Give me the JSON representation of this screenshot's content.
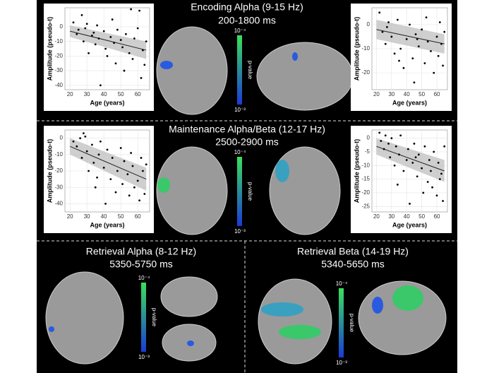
{
  "panels": [
    {
      "title": "Encoding Alpha (9-15 Hz)",
      "subtitle": "200-1800 ms"
    },
    {
      "title": "Maintenance Alpha/Beta (12-17 Hz)",
      "subtitle": "2500-2900 ms"
    },
    {
      "title": "Retrieval Alpha (8-12 Hz)",
      "subtitle": "5350-5750 ms"
    },
    {
      "title": "Retrieval Beta (14-19 Hz)",
      "subtitle": "5340-5650 ms"
    }
  ],
  "colorbar": {
    "label": "p-value",
    "top": "10⁻⁴",
    "bottom": "10⁻³"
  },
  "chart_data": [
    {
      "type": "scatter",
      "x_label": "Age (years)",
      "y_label": "Amplitude (pseudo-t)",
      "color": "#000000",
      "x": [
        22,
        24,
        25,
        27,
        28,
        29,
        30,
        31,
        33,
        34,
        35,
        36,
        37,
        38,
        40,
        41,
        42,
        44,
        45,
        46,
        47,
        48,
        50,
        51,
        52,
        53,
        55,
        56,
        57,
        58,
        60,
        61,
        62,
        63,
        64,
        65
      ],
      "values": [
        3,
        -5,
        -2,
        8,
        -10,
        -1,
        2,
        -18,
        -6,
        -4,
        -12,
        1,
        -8,
        -40,
        -3,
        -15,
        -20,
        -7,
        5,
        -11,
        -25,
        -2,
        -9,
        -14,
        -30,
        -5,
        -18,
        12,
        -22,
        -8,
        -1,
        11,
        -35,
        -16,
        -26,
        -10
      ],
      "fit": {
        "x": [
          20,
          65
        ],
        "values": [
          -3,
          -16
        ],
        "lower": [
          -7,
          -22
        ],
        "upper": [
          1,
          -10
        ]
      },
      "xlim": [
        17,
        67
      ],
      "xticks": [
        20,
        30,
        40,
        50,
        60
      ],
      "ylim": [
        -43,
        13
      ],
      "yticks": [
        0,
        -10,
        -20,
        -30,
        -40
      ],
      "grid": true
    },
    {
      "type": "scatter",
      "x_label": "Age (years)",
      "y_label": "Amplitude (pseudo-t)",
      "color": "#000000",
      "x": [
        22,
        24,
        26,
        28,
        30,
        32,
        34,
        36,
        38,
        40,
        42,
        44,
        45,
        46,
        48,
        50,
        52,
        53,
        54,
        56,
        58,
        60,
        61,
        62,
        63,
        64,
        65,
        27,
        35,
        47
      ],
      "values": [
        5,
        -3,
        -8,
        1,
        -5,
        -12,
        2,
        -10,
        -18,
        -6,
        0,
        -14,
        -24,
        -4,
        -9,
        -2,
        -16,
        3,
        -7,
        -11,
        -20,
        -5,
        -13,
        1,
        -8,
        -17,
        -3,
        -1,
        -15,
        -6
      ],
      "fit": {
        "x": [
          20,
          65
        ],
        "values": [
          -2,
          -8
        ],
        "lower": [
          -6,
          -12
        ],
        "upper": [
          2,
          -4
        ]
      },
      "xlim": [
        17,
        67
      ],
      "xticks": [
        20,
        30,
        40,
        50,
        60
      ],
      "ylim": [
        -27,
        7
      ],
      "yticks": [
        0,
        -10,
        -20
      ],
      "grid": true
    },
    {
      "type": "scatter",
      "x_label": "Age (years)",
      "y_label": "Amplitude (pseudo-t)",
      "color": "#000000",
      "x": [
        22,
        24,
        26,
        27,
        28,
        30,
        31,
        33,
        34,
        35,
        37,
        38,
        40,
        41,
        42,
        44,
        45,
        47,
        48,
        50,
        51,
        52,
        54,
        55,
        56,
        57,
        58,
        60,
        61,
        62,
        63,
        64,
        65,
        29,
        36
      ],
      "values": [
        -2,
        -5,
        0,
        -12,
        3,
        -8,
        -20,
        -4,
        -15,
        -30,
        -10,
        -2,
        -18,
        -40,
        -7,
        -25,
        -12,
        -33,
        -20,
        -6,
        -28,
        -14,
        -22,
        -35,
        -9,
        -17,
        -30,
        -26,
        -38,
        -12,
        -20,
        -34,
        -16,
        1,
        -24
      ],
      "fit": {
        "x": [
          20,
          65
        ],
        "values": [
          -5,
          -25
        ],
        "lower": [
          -10,
          -32
        ],
        "upper": [
          0,
          -18
        ]
      },
      "xlim": [
        17,
        67
      ],
      "xticks": [
        20,
        30,
        40,
        50,
        60
      ],
      "ylim": [
        -45,
        5
      ],
      "yticks": [
        0,
        -10,
        -20,
        -30,
        -40
      ],
      "grid": true
    },
    {
      "type": "scatter",
      "x_label": "Age (years)",
      "y_label": "Amplitude (pseudo-t)",
      "color": "#000000",
      "x": [
        22,
        23,
        25,
        26,
        28,
        29,
        30,
        32,
        33,
        35,
        36,
        38,
        40,
        41,
        42,
        44,
        45,
        47,
        48,
        50,
        51,
        52,
        54,
        55,
        56,
        57,
        58,
        60,
        61,
        62,
        63,
        64,
        65,
        34,
        46
      ],
      "values": [
        2,
        -1,
        -4,
        1,
        -2,
        -7,
        0,
        -10,
        -3,
        -6,
        1,
        -12,
        -8,
        -4,
        -24,
        -9,
        -2,
        -14,
        -6,
        -11,
        -20,
        -3,
        -16,
        -8,
        -12,
        -18,
        -5,
        -21,
        -9,
        -15,
        -13,
        -23,
        -3,
        -17,
        -7
      ],
      "fit": {
        "x": [
          20,
          65
        ],
        "values": [
          -3,
          -12
        ],
        "lower": [
          -6,
          -16
        ],
        "upper": [
          0,
          -8
        ]
      },
      "xlim": [
        17,
        67
      ],
      "xticks": [
        20,
        30,
        40,
        50,
        60
      ],
      "ylim": [
        -27,
        3
      ],
      "yticks": [
        0,
        -5,
        -10,
        -15,
        -20,
        -25
      ],
      "grid": true
    }
  ]
}
